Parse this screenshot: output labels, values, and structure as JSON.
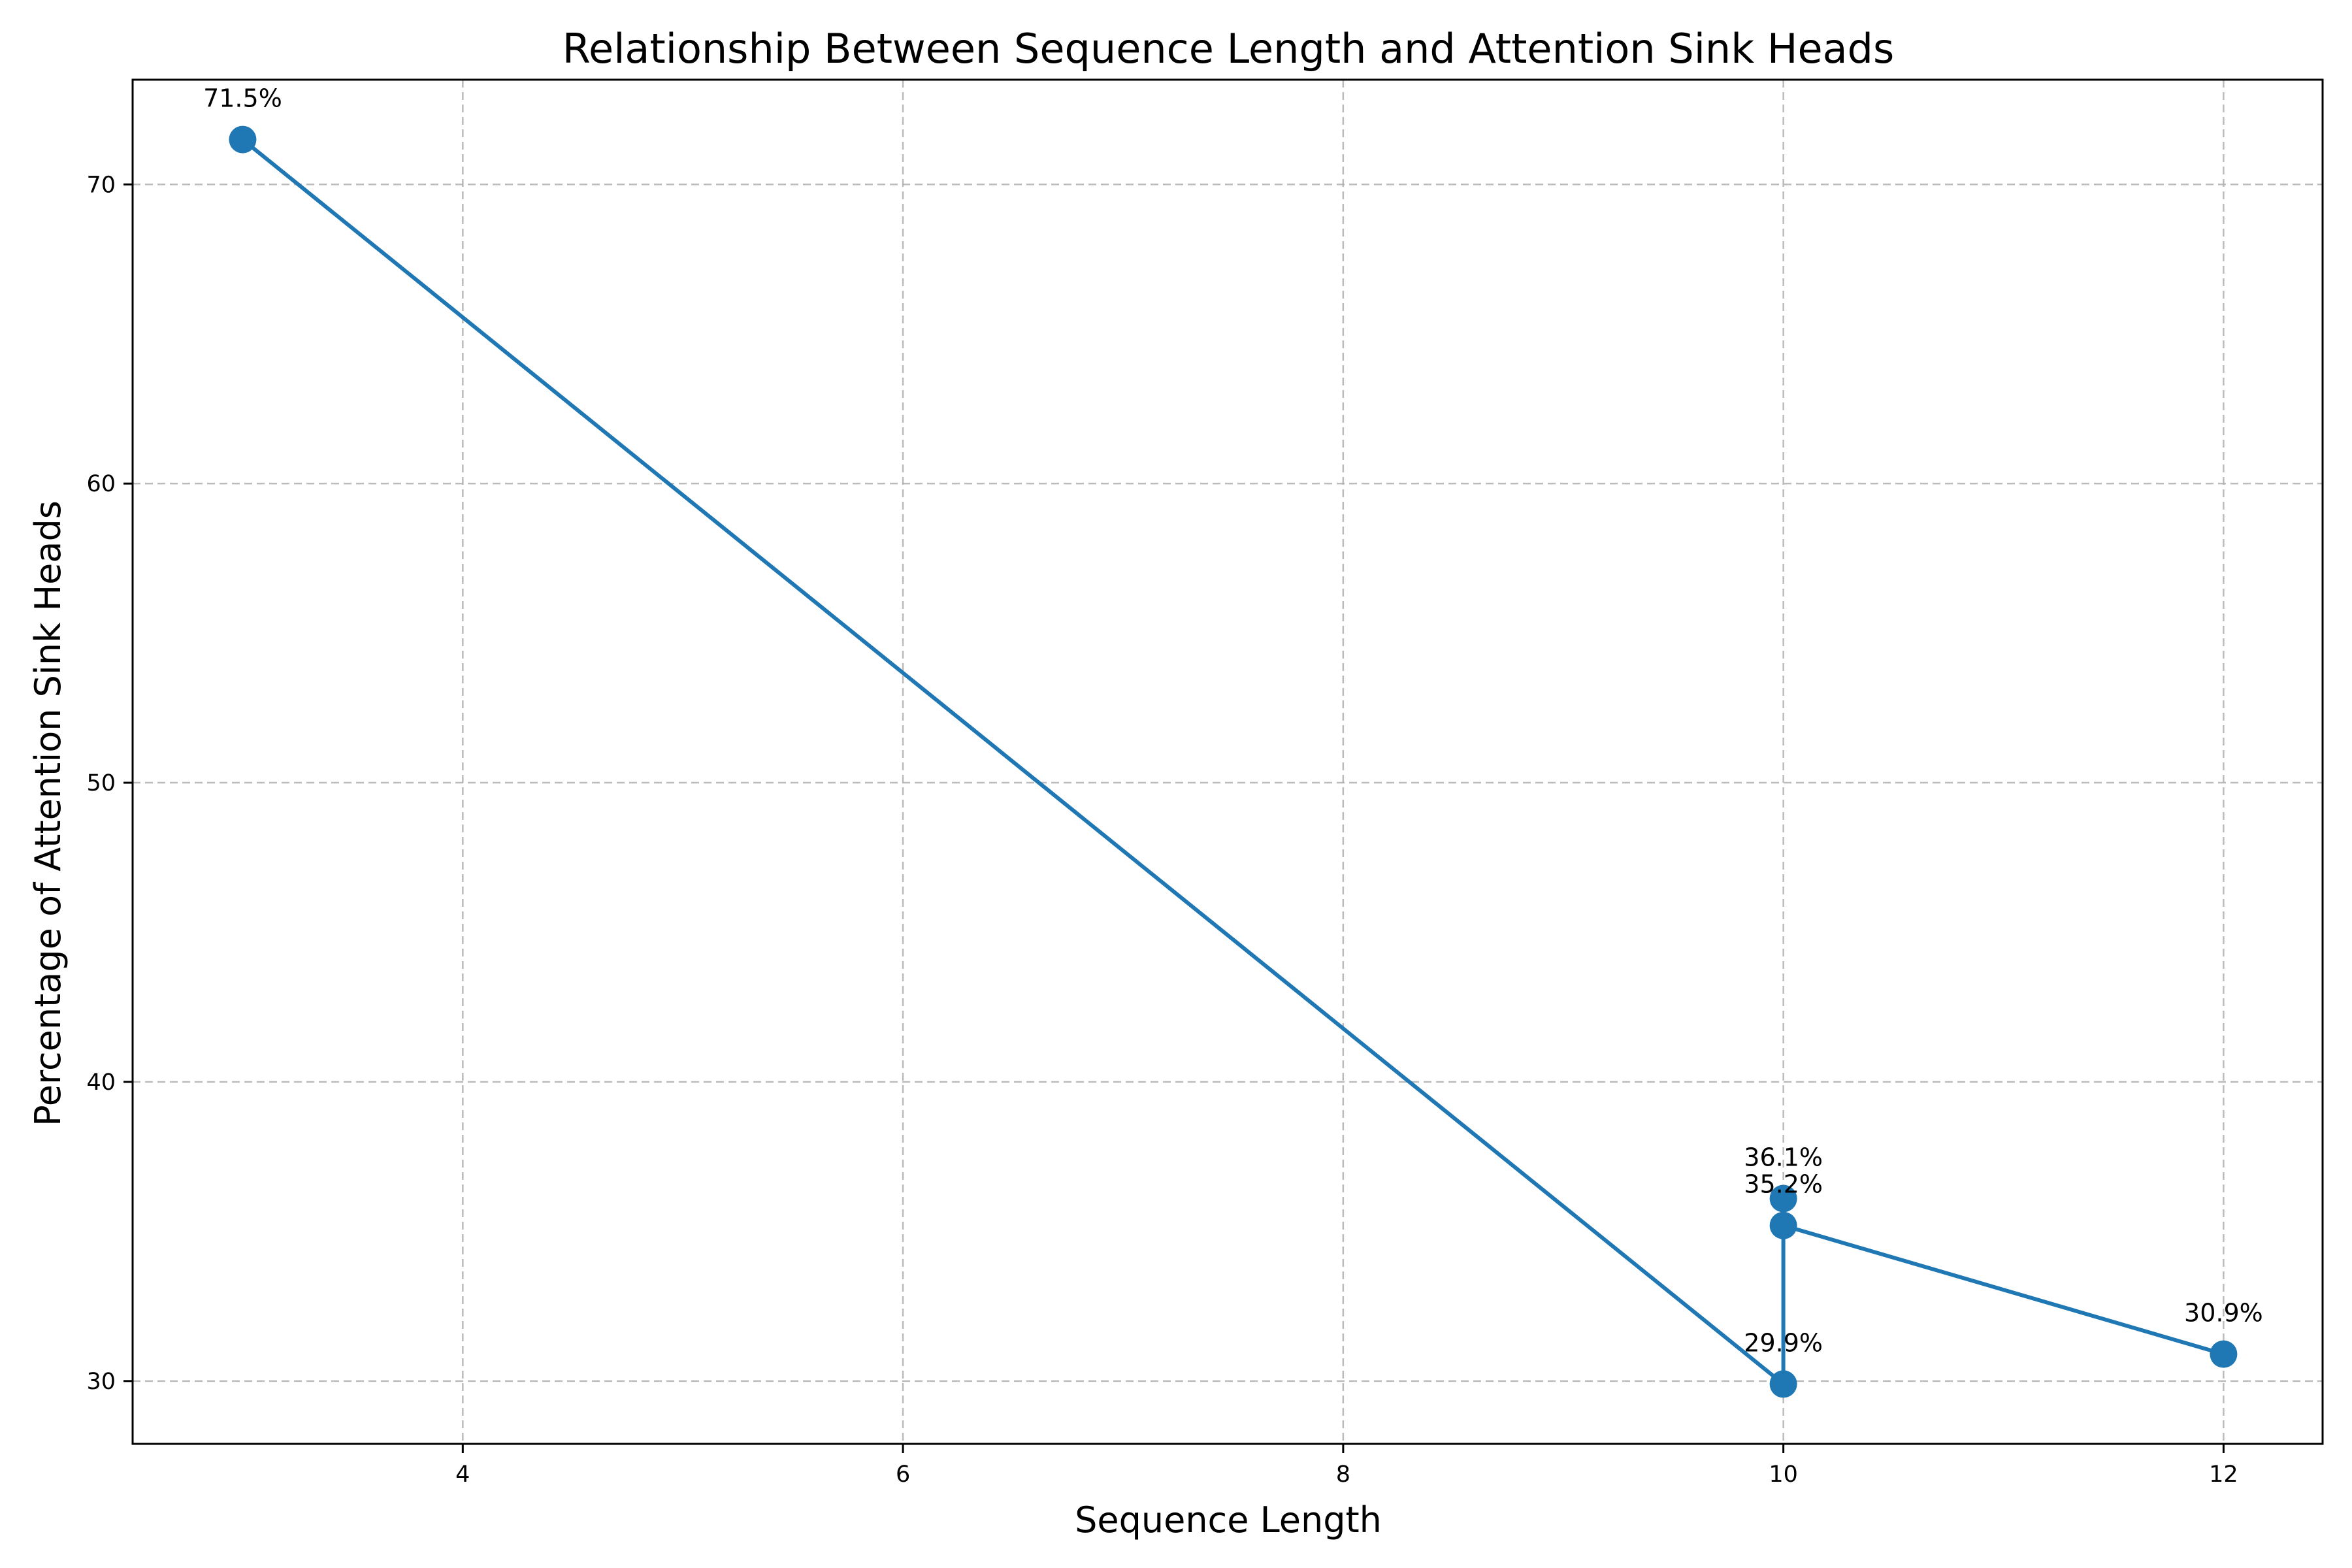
{
  "chart_data": {
    "type": "line",
    "title": "Relationship Between Sequence Length and Attention Sink Heads",
    "xlabel": "Sequence Length",
    "ylabel": "Percentage of Attention Sink Heads",
    "xlim": [
      2.5,
      12.45
    ],
    "ylim": [
      27.9,
      73.5
    ],
    "xticks": [
      4,
      6,
      8,
      10,
      12
    ],
    "yticks": [
      30,
      40,
      50,
      60,
      70
    ],
    "grid": true,
    "series": [
      {
        "color": "#1f77b4",
        "points": [
          {
            "x": 3,
            "y": 71.5,
            "label": "71.5%"
          },
          {
            "x": 10,
            "y": 29.9,
            "label": "29.9%"
          },
          {
            "x": 10,
            "y": 36.1,
            "label": "36.1%"
          },
          {
            "x": 10,
            "y": 35.2,
            "label": "35.2%"
          },
          {
            "x": 12,
            "y": 30.9,
            "label": "30.9%"
          }
        ]
      }
    ]
  }
}
